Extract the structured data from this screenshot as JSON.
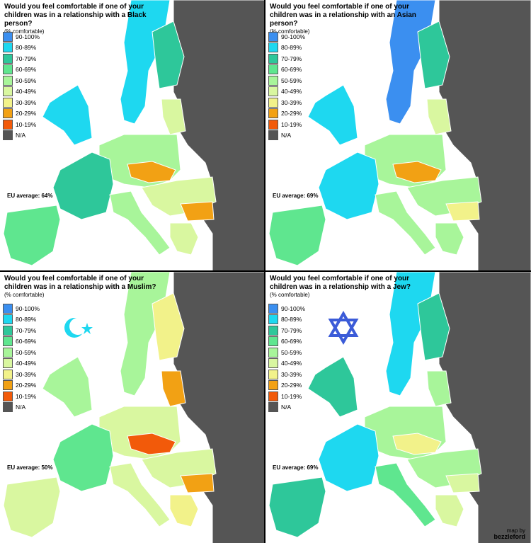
{
  "legend": [
    {
      "label": "90-100%",
      "color": "#3b8ff0"
    },
    {
      "label": "80-89%",
      "color": "#1ed8f0"
    },
    {
      "label": "70-79%",
      "color": "#2ec79a"
    },
    {
      "label": "60-69%",
      "color": "#5fe68f"
    },
    {
      "label": "50-59%",
      "color": "#a8f59a"
    },
    {
      "label": "40-49%",
      "color": "#d9f7a0"
    },
    {
      "label": "30-39%",
      "color": "#f2f28a"
    },
    {
      "label": "20-29%",
      "color": "#f2a114"
    },
    {
      "label": "10-19%",
      "color": "#f25a0a"
    },
    {
      "label": "N/A",
      "color": "#555555"
    }
  ],
  "panels": [
    {
      "title": "Would you feel comfortable if one of your children was in a relationship with a Black person?",
      "subtitle": "(% comfortable)",
      "average": "EU average: 64%",
      "symbol": "none",
      "fills": {
        "nordic_w": "#1ed8f0",
        "nordic_e": "#2ec79a",
        "baltic": "#d9f7a0",
        "uk": "#1ed8f0",
        "central": "#a8f59a",
        "czsk": "#f2a114",
        "france": "#2ec79a",
        "iberia": "#5fe68f",
        "italy": "#a8f59a",
        "balkans": "#d9f7a0",
        "bulgaria": "#f2a114",
        "greece": "#d9f7a0",
        "east": "#555555"
      }
    },
    {
      "title": "Would you feel comfortable if one of your children was in a relationship with an Asian person?",
      "subtitle": "(% comfortable)",
      "average": "EU average: 69%",
      "symbol": "none",
      "fills": {
        "nordic_w": "#3b8ff0",
        "nordic_e": "#2ec79a",
        "baltic": "#d9f7a0",
        "uk": "#1ed8f0",
        "central": "#a8f59a",
        "czsk": "#f2a114",
        "france": "#1ed8f0",
        "iberia": "#5fe68f",
        "italy": "#a8f59a",
        "balkans": "#a8f59a",
        "bulgaria": "#f2f28a",
        "greece": "#a8f59a",
        "east": "#555555"
      }
    },
    {
      "title": "Would you feel comfortable if one of your children was in a relationship with a Muslim?",
      "subtitle": "(% comfortable)",
      "average": "EU average: 50%",
      "symbol": "crescent-star-icon",
      "fills": {
        "nordic_w": "#a8f59a",
        "nordic_e": "#f2f28a",
        "baltic": "#f2a114",
        "uk": "#a8f59a",
        "central": "#d9f7a0",
        "czsk": "#f25a0a",
        "france": "#5fe68f",
        "iberia": "#d9f7a0",
        "italy": "#d9f7a0",
        "balkans": "#d9f7a0",
        "bulgaria": "#f2a114",
        "greece": "#f2f28a",
        "east": "#555555"
      }
    },
    {
      "title": "Would you feel comfortable if one of your children was in a relationship with a Jew?",
      "subtitle": "(% comfortable)",
      "average": "EU average: 69%",
      "symbol": "star-of-david-icon",
      "fills": {
        "nordic_w": "#1ed8f0",
        "nordic_e": "#2ec79a",
        "baltic": "#a8f59a",
        "uk": "#2ec79a",
        "central": "#a8f59a",
        "czsk": "#f2f28a",
        "france": "#1ed8f0",
        "iberia": "#2ec79a",
        "italy": "#5fe68f",
        "balkans": "#a8f59a",
        "bulgaria": "#d9f7a0",
        "greece": "#d9f7a0",
        "east": "#555555"
      }
    }
  ],
  "credit": {
    "line1": "map by",
    "line2": "bezzleford"
  }
}
